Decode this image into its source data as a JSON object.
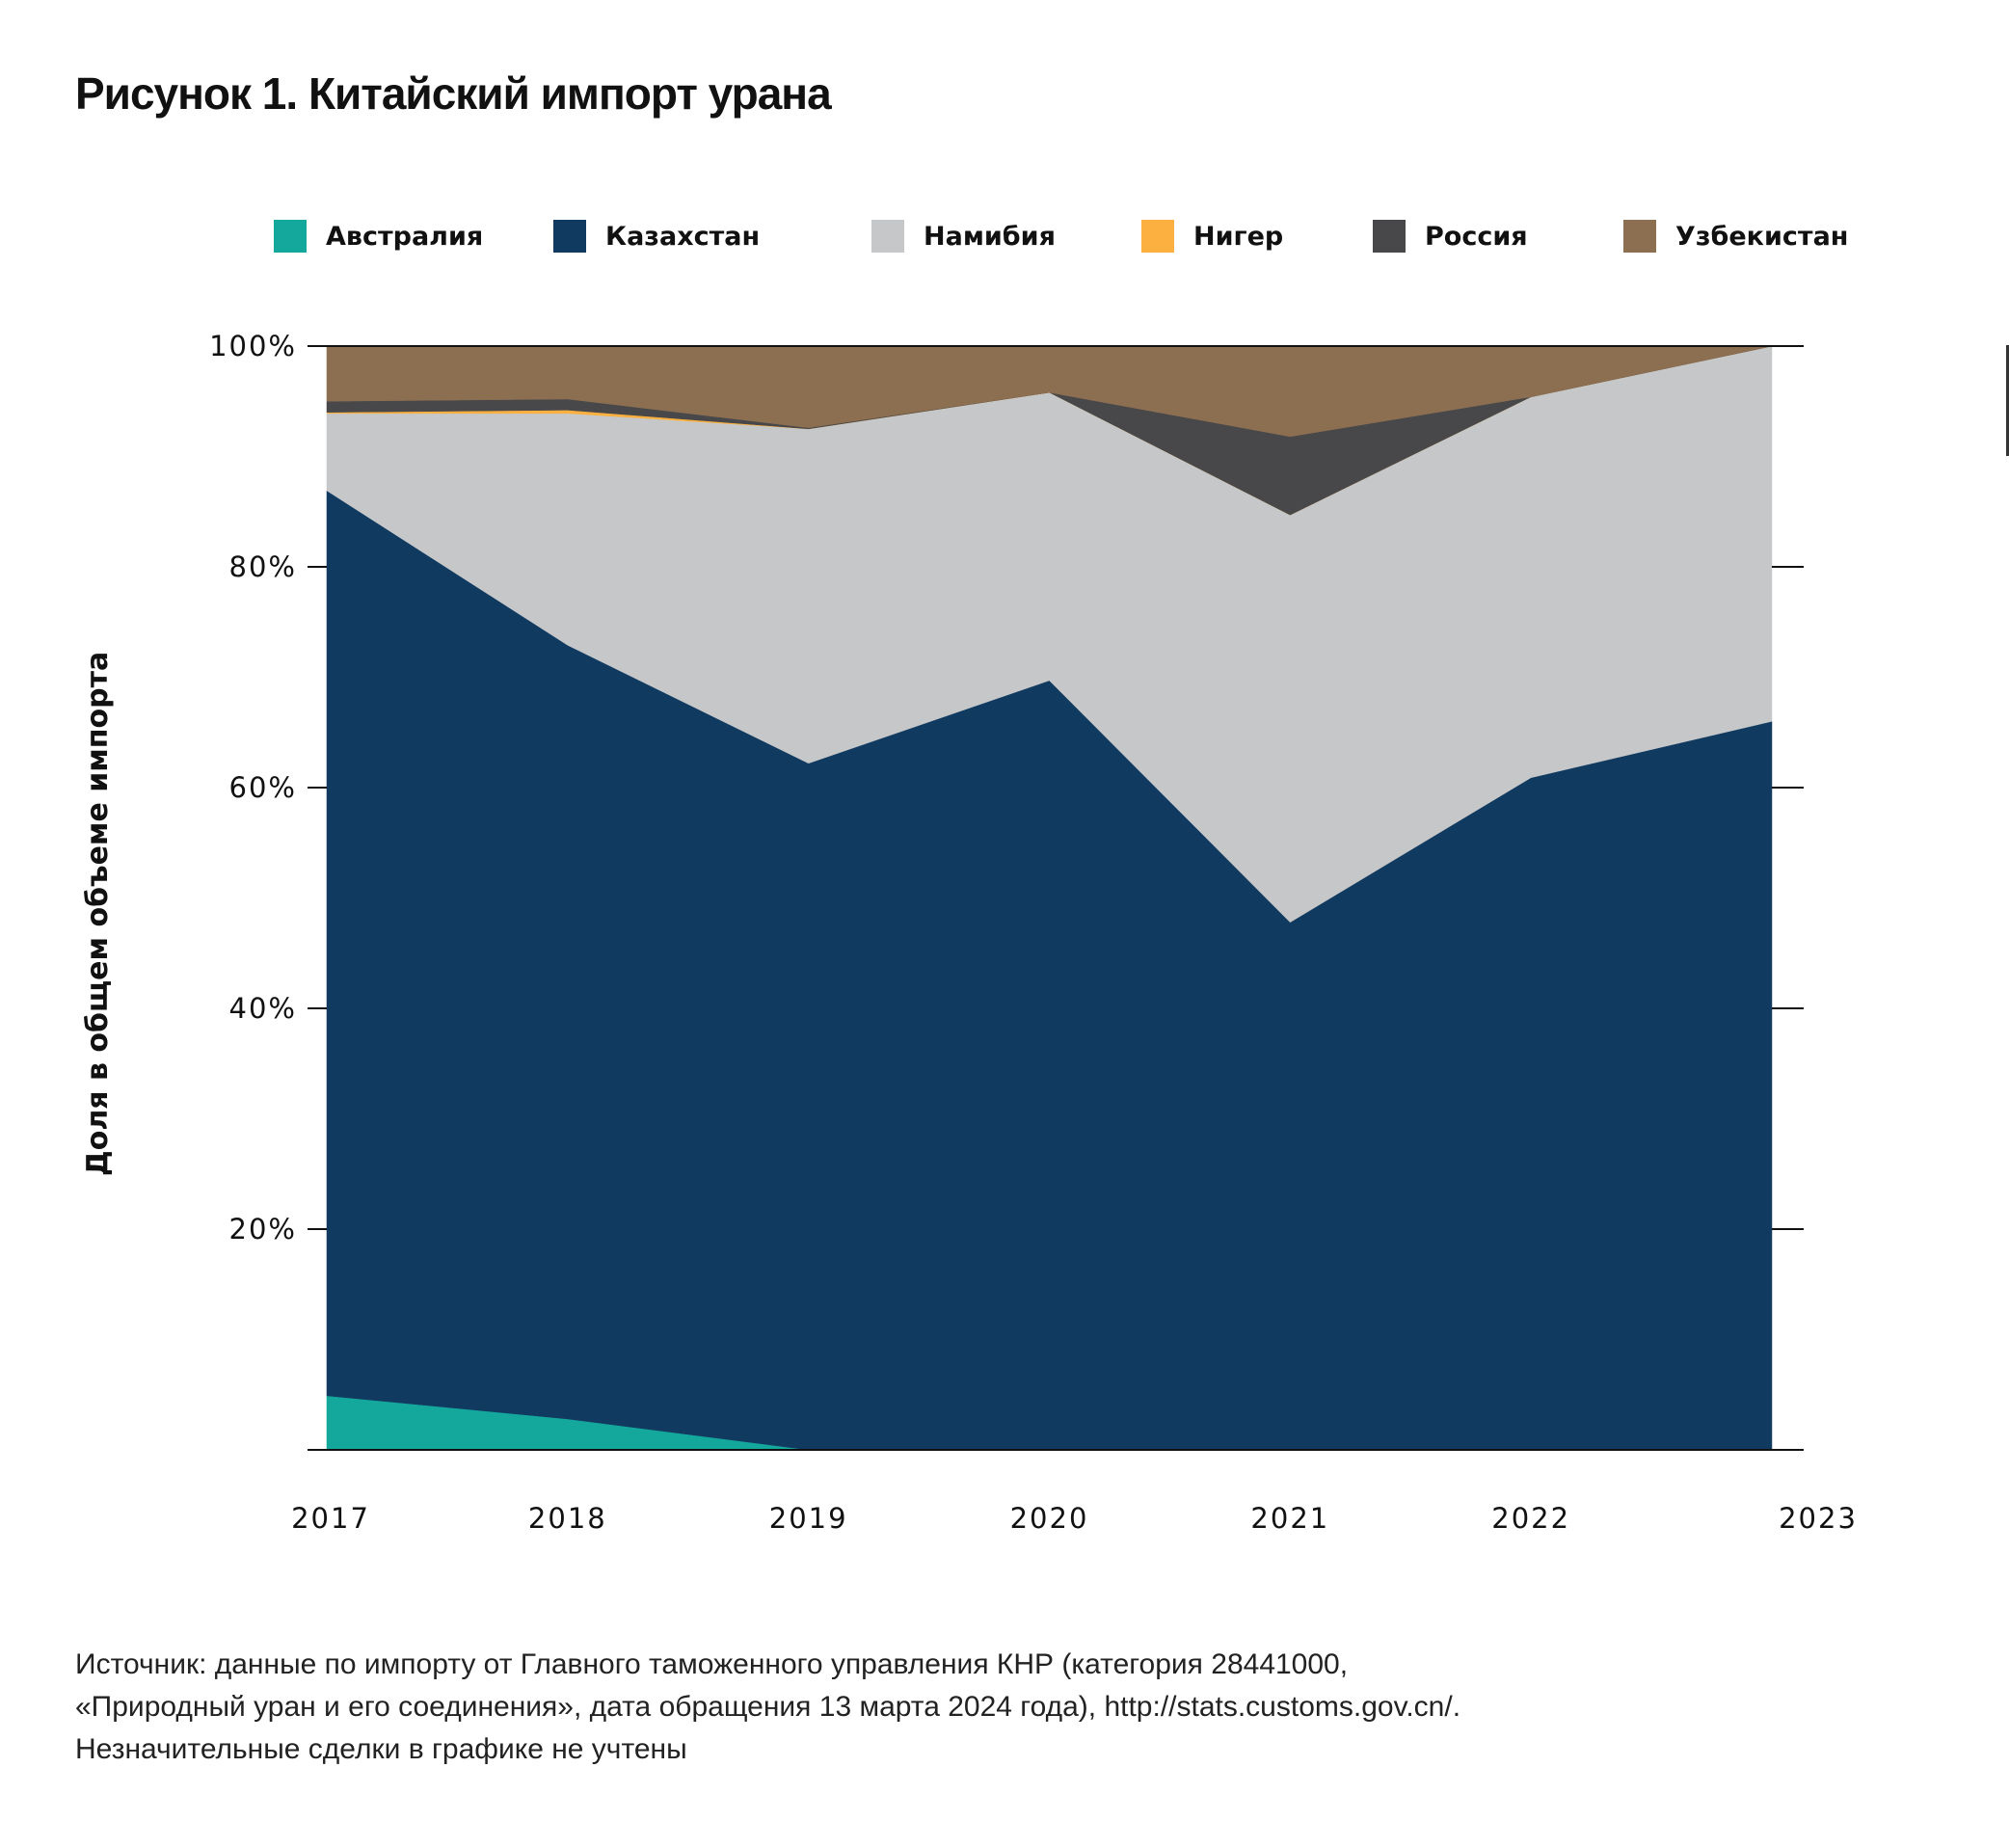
{
  "title": "Рисунок 1. Китайский импорт урана",
  "chart_data": {
    "type": "area",
    "stacked": true,
    "title": "Рисунок 1. Китайский импорт урана",
    "xlabel": "",
    "ylabel": "Доля в общем объеме импорта",
    "ylim": [
      0,
      100
    ],
    "y_ticks": [
      "",
      "20%",
      "40%",
      "60%",
      "80%",
      "100%"
    ],
    "y_tick_values": [
      0,
      20,
      40,
      60,
      80,
      100
    ],
    "x": [
      "2017",
      "2018",
      "2019",
      "2020",
      "2021",
      "2022",
      "2023"
    ],
    "legend_position": "top",
    "series": [
      {
        "name": "Австралия",
        "color": "#14a89d",
        "values": [
          4.9,
          2.8,
          0,
          0,
          0,
          0,
          0
        ]
      },
      {
        "name": "Казахстан",
        "color": "#113a61",
        "values": [
          82.0,
          70.1,
          62.2,
          69.7,
          47.8,
          60.9,
          66.0
        ]
      },
      {
        "name": "Намибия",
        "color": "#c6c7c8",
        "values": [
          7.0,
          21.0,
          30.3,
          26.1,
          36.9,
          34.5,
          34.0
        ]
      },
      {
        "name": "Нигер",
        "color": "#fbb040",
        "values": [
          0.1,
          0.3,
          0,
          0,
          0,
          0,
          0
        ]
      },
      {
        "name": "Россия",
        "color": "#48484a",
        "values": [
          1.0,
          1.0,
          0.1,
          0,
          7.1,
          0,
          0
        ]
      },
      {
        "name": "Узбекистан",
        "color": "#8c6e50",
        "values": [
          5.0,
          4.8,
          7.4,
          4.2,
          8.2,
          4.6,
          0
        ]
      }
    ]
  },
  "source": [
    "Источник: данные по импорту от Главного таможенного управления КНР (категория 28441000,",
    "«Природный уран и его соединения», дата обращения 13 марта 2024 года), http://stats.customs.gov.cn/.",
    "Незначительные сделки в графике не учтены"
  ]
}
